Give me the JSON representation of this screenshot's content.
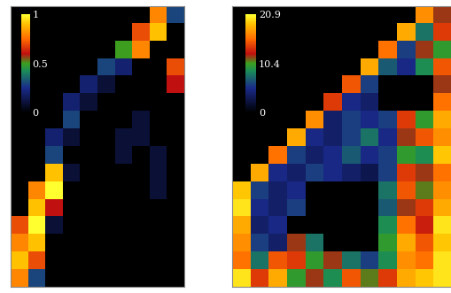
{
  "chart_data": [
    {
      "type": "heatmap",
      "tick_labels": false,
      "color_range": [
        0,
        1
      ],
      "color_ticks": [
        0,
        0.5,
        1
      ],
      "cells": [
        [
          0,
          0,
          0,
          0,
          0,
          0,
          0,
          0,
          0.8,
          0.3
        ],
        [
          0,
          0,
          0,
          0,
          0,
          0,
          0,
          0.7,
          0.9,
          0
        ],
        [
          0,
          0,
          0,
          0,
          0,
          0,
          0.5,
          0.8,
          0,
          0
        ],
        [
          0,
          0,
          0,
          0,
          0,
          0.3,
          0.2,
          0,
          0,
          0.7
        ],
        [
          0,
          0,
          0,
          0,
          0.2,
          0.1,
          0,
          0,
          0,
          0.6
        ],
        [
          0,
          0,
          0,
          0.2,
          0.1,
          0,
          0,
          0,
          0,
          0
        ],
        [
          0,
          0,
          0,
          0.3,
          0,
          0,
          0,
          0.1,
          0,
          0
        ],
        [
          0,
          0,
          0.2,
          0.1,
          0,
          0,
          0.1,
          0.1,
          0,
          0
        ],
        [
          0,
          0,
          0.3,
          0,
          0,
          0,
          0.1,
          0,
          0.1,
          0
        ],
        [
          0,
          0,
          0.9,
          0.1,
          0,
          0,
          0,
          0,
          0.1,
          0
        ],
        [
          0,
          0.8,
          1,
          0,
          0,
          0,
          0,
          0,
          0.1,
          0
        ],
        [
          0,
          0.9,
          0.6,
          0,
          0,
          0,
          0,
          0,
          0,
          0
        ],
        [
          0.7,
          1,
          0.1,
          0,
          0,
          0,
          0,
          0,
          0,
          0
        ],
        [
          0.8,
          0.9,
          0,
          0,
          0,
          0,
          0,
          0,
          0,
          0
        ],
        [
          0.9,
          0.7,
          0,
          0,
          0,
          0,
          0,
          0,
          0,
          0
        ],
        [
          0.8,
          0.3,
          0,
          0,
          0,
          0,
          0,
          0,
          0,
          0
        ]
      ]
    },
    {
      "type": "heatmap",
      "tick_labels": false,
      "color_range": [
        0,
        20.9
      ],
      "color_ticks": [
        0,
        10.4,
        20.9
      ],
      "cells": [
        [
          0,
          0,
          0,
          0,
          0,
          0,
          0,
          0,
          0,
          0,
          17,
          12
        ],
        [
          0,
          0,
          0,
          0,
          0,
          0,
          0,
          0,
          0,
          18,
          8,
          14
        ],
        [
          0,
          0,
          0,
          0,
          0,
          0,
          0,
          0,
          16,
          6,
          12,
          10
        ],
        [
          0,
          0,
          0,
          0,
          0,
          0,
          0,
          18,
          7,
          5,
          9,
          15
        ],
        [
          0,
          0,
          0,
          0,
          0,
          0,
          15,
          6,
          0,
          0,
          0,
          12
        ],
        [
          0,
          0,
          0,
          0,
          0,
          14,
          5,
          4,
          0,
          0,
          0,
          16
        ],
        [
          0,
          0,
          0,
          0,
          17,
          4,
          6,
          5,
          6,
          14,
          10,
          18
        ],
        [
          0,
          0,
          0,
          18,
          5,
          4,
          6,
          8,
          5,
          12,
          15,
          17
        ],
        [
          0,
          0,
          16,
          6,
          4,
          5,
          7,
          5,
          6,
          10,
          9,
          19
        ],
        [
          0,
          18,
          5,
          4,
          6,
          5,
          4,
          3,
          6,
          14,
          12,
          16
        ],
        [
          19,
          6,
          4,
          5,
          0,
          0,
          0,
          0,
          8,
          15,
          11,
          17
        ],
        [
          20,
          5,
          4,
          6,
          0,
          0,
          0,
          0,
          7,
          12,
          14,
          18
        ],
        [
          18,
          4,
          5,
          0,
          0,
          0,
          0,
          0,
          9,
          16,
          13,
          20
        ],
        [
          17,
          6,
          4,
          12,
          8,
          0,
          0,
          0,
          10,
          18,
          15,
          19
        ],
        [
          16,
          8,
          15,
          14,
          10,
          12,
          8,
          6,
          9,
          17,
          16,
          20
        ],
        [
          20,
          14,
          18,
          10,
          12,
          9,
          15,
          11,
          14,
          18,
          19,
          20
        ]
      ]
    }
  ]
}
